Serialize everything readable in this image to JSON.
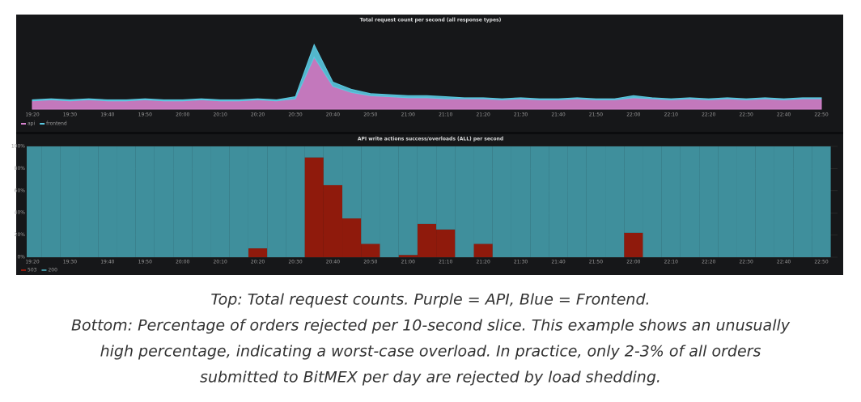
{
  "chart_data": [
    {
      "type": "area",
      "title": "Total request count per second (all response types)",
      "categories": [
        "19:20",
        null,
        "19:30",
        null,
        "19:40",
        null,
        "19:50",
        null,
        "20:00",
        null,
        "20:10",
        null,
        "20:20",
        null,
        "20:30",
        null,
        "20:40",
        null,
        "20:50",
        null,
        "21:00",
        null,
        "21:10",
        null,
        "21:20",
        null,
        "21:30",
        null,
        "21:40",
        null,
        "21:50",
        null,
        "22:00",
        null,
        "22:10",
        null,
        "22:20",
        null,
        "22:30",
        null,
        "22:40",
        null,
        "22:50"
      ],
      "series": [
        {
          "name": "api",
          "color": "#d683ce",
          "values": [
            8,
            9,
            8,
            9,
            8,
            8,
            9,
            8,
            8,
            9,
            8,
            8,
            9,
            8,
            10,
            50,
            22,
            16,
            13,
            12,
            11,
            11,
            10,
            10,
            10,
            9,
            10,
            9,
            9,
            10,
            9,
            9,
            11,
            10,
            9,
            10,
            9,
            10,
            9,
            10,
            9,
            10,
            10
          ]
        },
        {
          "name": "frontend",
          "color": "#5ac8e0",
          "values": [
            1,
            1,
            1,
            1,
            1,
            1,
            1,
            1,
            1,
            1,
            1,
            1,
            1,
            1,
            2,
            12,
            4,
            3,
            2,
            2,
            2,
            2,
            2,
            1,
            1,
            1,
            1,
            1,
            1,
            1,
            1,
            1,
            2,
            1,
            1,
            1,
            1,
            1,
            1,
            1,
            1,
            1,
            1
          ]
        }
      ],
      "stacked": true,
      "ylim": [
        0,
        80
      ]
    },
    {
      "type": "bar",
      "title": "API write actions success/overloads (ALL) per second",
      "categories": [
        "19:20",
        null,
        "19:30",
        null,
        "19:40",
        null,
        "19:50",
        null,
        "20:00",
        null,
        "20:10",
        null,
        "20:20",
        null,
        "20:30",
        null,
        "20:40",
        null,
        "20:50",
        null,
        "21:00",
        null,
        "21:10",
        null,
        "21:20",
        null,
        "21:30",
        null,
        "21:40",
        null,
        "21:50",
        null,
        "22:00",
        null,
        "22:10",
        null,
        "22:20",
        null,
        "22:30",
        null,
        "22:40",
        null,
        "22:50"
      ],
      "series": [
        {
          "name": "503",
          "color": "#8f1a0c",
          "values": [
            0,
            0,
            0,
            0,
            0,
            0,
            0,
            0,
            0,
            0,
            0,
            0,
            8,
            0,
            0,
            90,
            65,
            35,
            12,
            0,
            2,
            30,
            25,
            0,
            12,
            0,
            0,
            0,
            0,
            0,
            0,
            0,
            22,
            0,
            0,
            0,
            0,
            0,
            0,
            0,
            0,
            0,
            0
          ]
        },
        {
          "name": "200",
          "color": "#3f8f9c",
          "values": [
            100,
            100,
            100,
            100,
            100,
            100,
            100,
            100,
            100,
            100,
            100,
            100,
            92,
            100,
            100,
            10,
            35,
            65,
            88,
            100,
            98,
            70,
            75,
            100,
            88,
            100,
            100,
            100,
            100,
            100,
            100,
            100,
            78,
            100,
            100,
            100,
            100,
            100,
            100,
            100,
            100,
            100,
            100
          ]
        }
      ],
      "stacked": true,
      "ylim": [
        0,
        100
      ],
      "grid": true,
      "yticks": [
        {
          "value": 0,
          "label": "0%"
        },
        {
          "value": 20,
          "label": "20%"
        },
        {
          "value": 40,
          "label": "40%"
        },
        {
          "value": 60,
          "label": "60%"
        },
        {
          "value": 80,
          "label": "80%"
        },
        {
          "value": 100,
          "label": "100%"
        }
      ]
    }
  ],
  "caption": [
    "Top: Total request counts. Purple = API, Blue = Frontend.",
    "Bottom: Percentage of orders rejected per 10-second slice. This example shows an unusually",
    "high percentage, indicating a worst-case overload. In practice, only 2-3% of all orders",
    "submitted to BitMEX per day are rejected by load shedding."
  ]
}
